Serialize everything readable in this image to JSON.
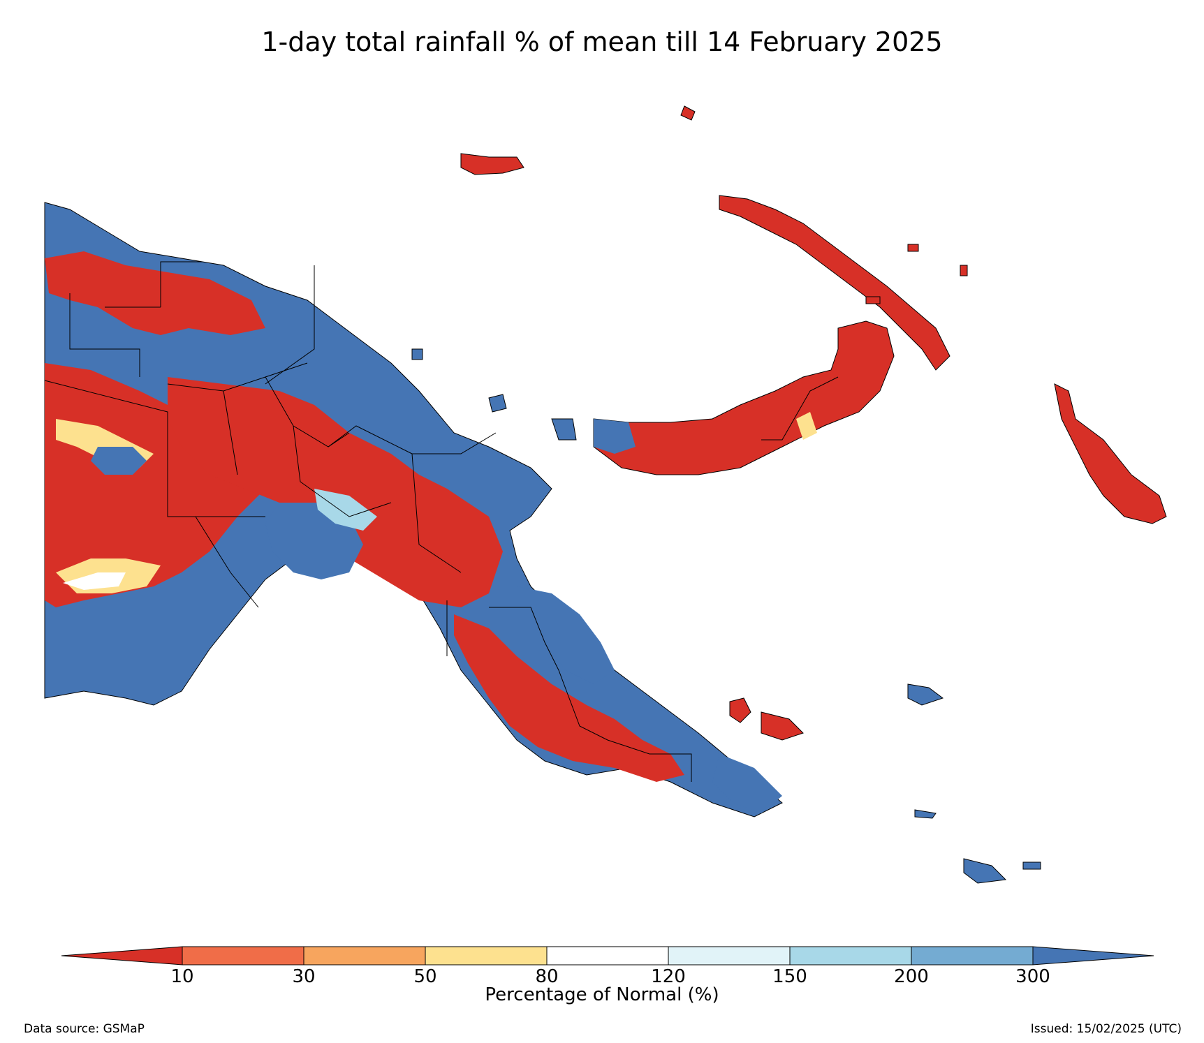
{
  "title": "1-day total rainfall % of mean till 14 February 2025",
  "colorbar": {
    "label": "Percentage of Normal (%)",
    "ticks": [
      "10",
      "30",
      "50",
      "80",
      "120",
      "150",
      "200",
      "300"
    ],
    "colors": [
      "#d73027",
      "#f06d48",
      "#f7a55e",
      "#fde18f",
      "#ffffff",
      "#e1f3f8",
      "#a8d8e8",
      "#74abd2",
      "#4575b4"
    ],
    "extend": "both"
  },
  "legend_categories": [
    "<10",
    "10-30",
    "30-50",
    "50-80",
    "80-120",
    "120-150",
    "150-200",
    "200-300",
    ">300"
  ],
  "footer": {
    "source": "Data source: GSMaP",
    "issued": "Issued: 15/02/2025 (UTC)"
  },
  "map": {
    "region": "Papua New Guinea",
    "dominant_colors": {
      "below_normal": "#d73027",
      "above_normal": "#4575b4",
      "boundary": "#000000"
    }
  }
}
